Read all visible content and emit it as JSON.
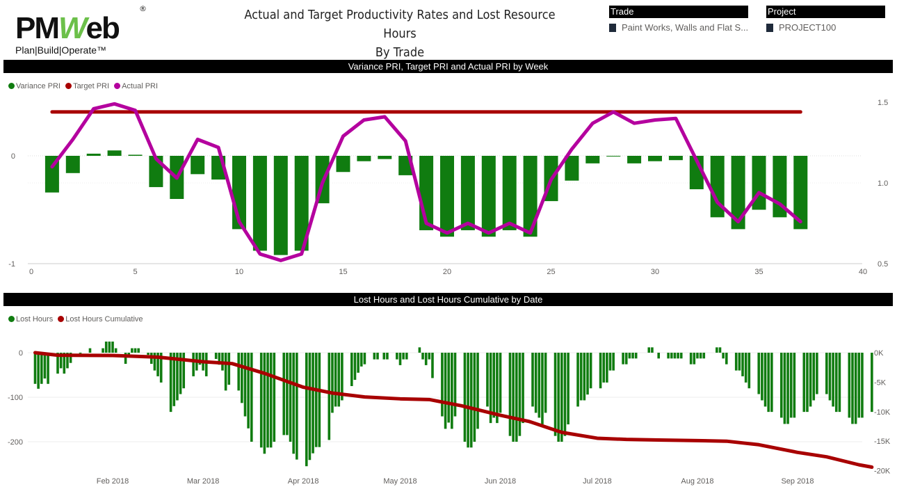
{
  "logo": {
    "text_pm": "PM",
    "text_w": "W",
    "text_eb": "eb",
    "registered": "®",
    "tagline": "Plan|Build|Operate™"
  },
  "header": {
    "title_line1": "Actual and Target Productivity Rates and Lost Resource Hours",
    "title_line2": "By Trade"
  },
  "slicers": {
    "trade": {
      "label": "Trade",
      "value": "Paint Works, Walls and Flat S..."
    },
    "project": {
      "label": "Project",
      "value": "PROJECT100"
    }
  },
  "colors": {
    "variance": "#107c10",
    "target": "#a80000",
    "actual": "#b4009e",
    "lost_hours": "#107c10",
    "cumulative": "#a80000"
  },
  "chart_data": [
    {
      "type": "bar+line",
      "title": "Variance PRI, Target PRI and Actual PRI by Week",
      "legend": [
        "Variance PRI",
        "Target PRI",
        "Actual PRI"
      ],
      "legend_position": "top-left",
      "x": [
        1,
        2,
        3,
        4,
        5,
        6,
        7,
        8,
        9,
        10,
        11,
        12,
        13,
        14,
        15,
        16,
        17,
        18,
        19,
        20,
        21,
        22,
        23,
        24,
        25,
        26,
        27,
        28,
        29,
        30,
        31,
        32,
        33,
        34,
        35,
        36,
        37
      ],
      "xlim": [
        0,
        40
      ],
      "xticks": [
        0,
        5,
        10,
        15,
        20,
        25,
        30,
        35,
        40
      ],
      "y_left": {
        "ylim": [
          -1,
          0.45
        ],
        "ticks": [
          0,
          -1
        ]
      },
      "y_right": {
        "ylim": [
          0.5,
          1.55
        ],
        "ticks": [
          1.5,
          1.0,
          0.5
        ],
        "tick_labels": [
          "1.5",
          "1.0",
          "0.5"
        ]
      },
      "series": [
        {
          "name": "Variance PRI",
          "axis": "left",
          "kind": "bar",
          "values": [
            -0.34,
            -0.16,
            0.02,
            0.05,
            0.01,
            -0.29,
            -0.4,
            -0.17,
            -0.22,
            -0.68,
            -0.88,
            -0.92,
            -0.88,
            -0.44,
            -0.15,
            -0.05,
            -0.03,
            -0.18,
            -0.69,
            -0.75,
            -0.69,
            -0.75,
            -0.69,
            -0.75,
            -0.42,
            -0.23,
            -0.07,
            0,
            -0.07,
            -0.05,
            -0.04,
            -0.31,
            -0.57,
            -0.68,
            -0.5,
            -0.57,
            -0.68
          ]
        },
        {
          "name": "Target PRI",
          "axis": "right",
          "kind": "line",
          "values": [
            1.44,
            1.44,
            1.44,
            1.44,
            1.44,
            1.44,
            1.44,
            1.44,
            1.44,
            1.44,
            1.44,
            1.44,
            1.44,
            1.44,
            1.44,
            1.44,
            1.44,
            1.44,
            1.44,
            1.44,
            1.44,
            1.44,
            1.44,
            1.44,
            1.44,
            1.44,
            1.44,
            1.44,
            1.44,
            1.44,
            1.44,
            1.44,
            1.44,
            1.44,
            1.44,
            1.44,
            1.44
          ]
        },
        {
          "name": "Actual PRI",
          "axis": "right",
          "kind": "line",
          "values": [
            1.1,
            1.27,
            1.46,
            1.49,
            1.45,
            1.15,
            1.03,
            1.27,
            1.22,
            0.76,
            0.56,
            0.52,
            0.56,
            1.0,
            1.29,
            1.39,
            1.41,
            1.26,
            0.75,
            0.69,
            0.75,
            0.69,
            0.75,
            0.69,
            1.02,
            1.21,
            1.37,
            1.44,
            1.37,
            1.39,
            1.4,
            1.14,
            0.88,
            0.76,
            0.94,
            0.87,
            0.76
          ]
        }
      ]
    },
    {
      "type": "bar+line",
      "title": "Lost Hours and Lost Hours Cumulative by Date",
      "legend": [
        "Lost Hours",
        "Lost Hours Cumulative"
      ],
      "legend_position": "top-left",
      "xlim": [
        "2018-01-06",
        "2018-09-26"
      ],
      "xticks": [
        "Feb 2018",
        "Mar 2018",
        "Apr 2018",
        "May 2018",
        "Jun 2018",
        "Jul 2018",
        "Aug 2018",
        "Sep 2018"
      ],
      "y_left": {
        "ticks": [
          0,
          -100,
          -200
        ],
        "ylim": [
          -265,
          30
        ]
      },
      "y_right": {
        "ticks": [
          "0K",
          "-5K",
          "-10K",
          "-15K",
          "-20K"
        ],
        "ylim": [
          -20500,
          0
        ]
      },
      "lost_hours_by_week": [
        {
          "week_of": "2018-01-08",
          "values": [
            -70,
            -81,
            -70,
            -58,
            -70
          ]
        },
        {
          "week_of": "2018-01-15",
          "values": [
            -47,
            -35,
            -47,
            -35,
            -23
          ]
        },
        {
          "week_of": "2018-01-22",
          "values": [
            -2,
            0,
            0,
            10,
            0
          ]
        },
        {
          "week_of": "2018-01-29",
          "values": [
            10,
            25,
            25,
            25,
            10
          ]
        },
        {
          "week_of": "2018-02-05",
          "values": [
            -25,
            -5,
            10,
            10,
            10
          ]
        },
        {
          "week_of": "2018-02-12",
          "values": [
            -5,
            -25,
            -40,
            -53,
            -67
          ]
        },
        {
          "week_of": "2018-02-19",
          "values": [
            -133,
            -120,
            -107,
            -93,
            -80
          ]
        },
        {
          "week_of": "2018-02-26",
          "values": [
            -53,
            -40,
            -27,
            -40,
            -53
          ]
        },
        {
          "week_of": "2018-03-05",
          "values": [
            -14,
            -27,
            -40,
            -85,
            -72
          ]
        },
        {
          "week_of": "2018-03-12",
          "values": [
            -85,
            -113,
            -143,
            -170,
            -200
          ]
        },
        {
          "week_of": "2018-03-19",
          "values": [
            -213,
            -227,
            -213,
            -213,
            -200
          ]
        },
        {
          "week_of": "2018-03-26",
          "values": [
            -185,
            -185,
            -200,
            -227,
            -240
          ]
        },
        {
          "week_of": "2018-04-02",
          "values": [
            -255,
            -241,
            -226,
            -212,
            -212
          ]
        },
        {
          "week_of": "2018-04-09",
          "values": [
            -196,
            -135,
            -121,
            -121,
            -107
          ]
        },
        {
          "week_of": "2018-04-16",
          "values": [
            -75,
            -61,
            -45,
            -31,
            -26
          ]
        },
        {
          "week_of": "2018-04-23",
          "values": [
            -15,
            -15,
            0,
            -15,
            -15
          ]
        },
        {
          "week_of": "2018-04-30",
          "values": [
            -15,
            -28,
            -15,
            -15,
            0
          ]
        },
        {
          "week_of": "2018-05-07",
          "values": [
            12,
            -15,
            -28,
            -15,
            -57
          ]
        },
        {
          "week_of": "2018-05-14",
          "values": [
            -143,
            -171,
            -157,
            -171,
            -143
          ]
        },
        {
          "week_of": "2018-05-21",
          "values": [
            -200,
            -213,
            -213,
            -200,
            -171
          ]
        },
        {
          "week_of": "2018-05-28",
          "values": [
            -121,
            -158,
            -146,
            -158,
            -135
          ]
        },
        {
          "week_of": "2018-06-04",
          "values": [
            -187,
            -200,
            -200,
            -187,
            -158
          ]
        },
        {
          "week_of": "2018-06-11",
          "values": [
            -121,
            -135,
            -146,
            -161,
            -135
          ]
        },
        {
          "week_of": "2018-06-18",
          "values": [
            -187,
            -200,
            -200,
            -187,
            -161
          ]
        },
        {
          "week_of": "2018-06-25",
          "values": [
            -121,
            -107,
            -107,
            -94,
            -80
          ]
        },
        {
          "week_of": "2018-07-02",
          "values": [
            -80,
            -67,
            -67,
            -40,
            -40
          ]
        },
        {
          "week_of": "2018-07-09",
          "values": [
            -26,
            -26,
            -13,
            -13,
            -13
          ]
        },
        {
          "week_of": "2018-07-16",
          "values": [
            0,
            12,
            12,
            0,
            -13
          ]
        },
        {
          "week_of": "2018-07-23",
          "values": [
            -13,
            -13,
            -13,
            -13,
            -13
          ]
        },
        {
          "week_of": "2018-07-30",
          "values": [
            -26,
            -26,
            -13,
            -13,
            -13
          ]
        },
        {
          "week_of": "2018-08-06",
          "values": [
            0,
            12,
            12,
            -13,
            -26
          ]
        },
        {
          "week_of": "2018-08-13",
          "values": [
            -40,
            -40,
            -53,
            -67,
            -80
          ]
        },
        {
          "week_of": "2018-08-20",
          "values": [
            -93,
            -107,
            -121,
            -133,
            -133
          ]
        },
        {
          "week_of": "2018-08-27",
          "values": [
            -146,
            -160,
            -160,
            -146,
            -146
          ]
        },
        {
          "week_of": "2018-09-03",
          "values": [
            -133,
            -133,
            -121,
            -107,
            -93
          ]
        },
        {
          "week_of": "2018-09-10",
          "values": [
            -93,
            -107,
            -121,
            -133,
            -133
          ]
        },
        {
          "week_of": "2018-09-17",
          "values": [
            -146,
            -160,
            -160,
            -146,
            -146
          ]
        },
        {
          "week_of": "2018-09-24",
          "values": [
            -133
          ]
        }
      ],
      "lost_hours_cumulative": [
        {
          "date": "2018-01-08",
          "value": 0
        },
        {
          "date": "2018-01-15",
          "value": -430
        },
        {
          "date": "2018-02-01",
          "value": -470
        },
        {
          "date": "2018-02-15",
          "value": -750
        },
        {
          "date": "2018-03-01",
          "value": -1530
        },
        {
          "date": "2018-03-10",
          "value": -1850
        },
        {
          "date": "2018-03-20",
          "value": -3500
        },
        {
          "date": "2018-04-01",
          "value": -5850
        },
        {
          "date": "2018-04-10",
          "value": -6840
        },
        {
          "date": "2018-04-20",
          "value": -7500
        },
        {
          "date": "2018-05-01",
          "value": -7820
        },
        {
          "date": "2018-05-10",
          "value": -7940
        },
        {
          "date": "2018-05-20",
          "value": -9000
        },
        {
          "date": "2018-06-01",
          "value": -10600
        },
        {
          "date": "2018-06-10",
          "value": -11670
        },
        {
          "date": "2018-06-20",
          "value": -13500
        },
        {
          "date": "2018-07-01",
          "value": -14500
        },
        {
          "date": "2018-07-10",
          "value": -14700
        },
        {
          "date": "2018-07-20",
          "value": -14800
        },
        {
          "date": "2018-08-01",
          "value": -14900
        },
        {
          "date": "2018-08-10",
          "value": -15000
        },
        {
          "date": "2018-08-20",
          "value": -15600
        },
        {
          "date": "2018-09-01",
          "value": -16900
        },
        {
          "date": "2018-09-10",
          "value": -17650
        },
        {
          "date": "2018-09-20",
          "value": -19000
        },
        {
          "date": "2018-09-24",
          "value": -19400
        }
      ]
    }
  ]
}
